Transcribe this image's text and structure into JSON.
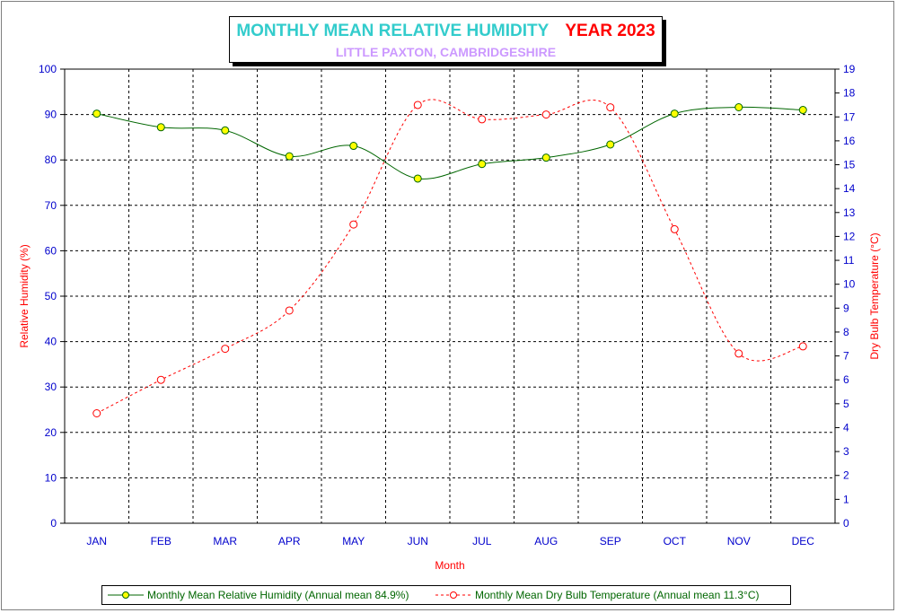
{
  "title": {
    "main": "MONTHLY MEAN RELATIVE HUMIDITY",
    "year": "YEAR 2023",
    "subtitle": "LITTLE PAXTON, CAMBRIDGESHIRE"
  },
  "colors": {
    "humidity_line": "#006600",
    "humidity_marker": "#ffff00",
    "temperature_line": "#ff0000",
    "axis_text": "#0000cc",
    "axis_label": "#ff0000",
    "title_main": "#33cccc",
    "title_year": "#ff0000",
    "subtitle": "#cc99ff"
  },
  "legend": {
    "humidity_label": "Monthly Mean Relative Humidity (Annual mean 84.9%)",
    "temperature_label": "Monthly Mean Dry Bulb Temperature (Annual mean 11.3°C)"
  },
  "chart_data": {
    "type": "line",
    "xlabel": "Month",
    "ylabel": "Relative Humidity (%)",
    "y2label": "Dry Bulb Temperature (°C)",
    "ylim": [
      0,
      100
    ],
    "y2lim": [
      0,
      19
    ],
    "yticks": [
      0,
      10,
      20,
      30,
      40,
      50,
      60,
      70,
      80,
      90,
      100
    ],
    "y2ticks": [
      0,
      1,
      2,
      3,
      4,
      5,
      6,
      7,
      8,
      9,
      10,
      11,
      12,
      13,
      14,
      15,
      16,
      17,
      18,
      19
    ],
    "grid": true,
    "legend_position": "bottom",
    "categories": [
      "JAN",
      "FEB",
      "MAR",
      "APR",
      "MAY",
      "JUN",
      "JUL",
      "AUG",
      "SEP",
      "OCT",
      "NOV",
      "DEC"
    ],
    "series": [
      {
        "name": "Monthly Mean Relative Humidity (Annual mean 84.9%)",
        "axis": "left",
        "style": "solid",
        "values": [
          90.2,
          87.2,
          86.5,
          80.8,
          83.1,
          75.9,
          79.1,
          80.5,
          83.4,
          90.2,
          91.6,
          91.0
        ]
      },
      {
        "name": "Monthly Mean Dry Bulb Temperature (Annual mean 11.3°C)",
        "axis": "right",
        "style": "dashed",
        "values": [
          4.6,
          6.0,
          7.3,
          8.9,
          12.5,
          17.5,
          16.9,
          17.1,
          17.4,
          12.3,
          7.1,
          7.4
        ]
      }
    ]
  }
}
